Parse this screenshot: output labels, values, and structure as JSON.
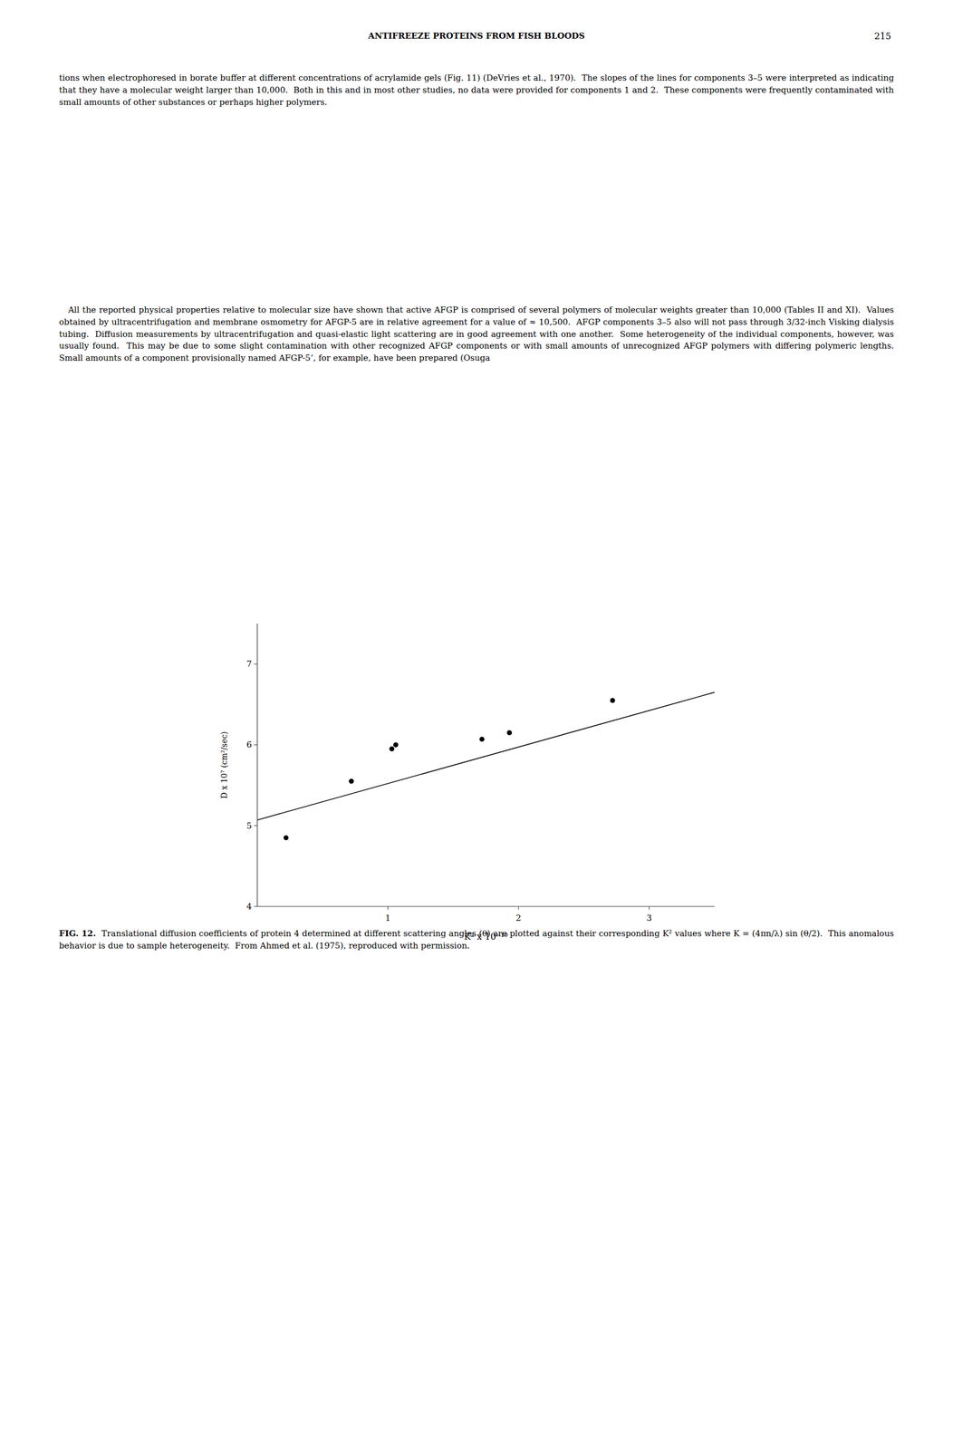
{
  "chart_data": {
    "type": "scatter",
    "xlabel": "K² x 10⁻¹⁰",
    "ylabel": "D x 10⁷ (cm²/sec)",
    "xlim": [
      0,
      3.5
    ],
    "ylim": [
      4.0,
      7.5
    ],
    "xticks": [
      1,
      2,
      3
    ],
    "yticks": [
      4,
      5,
      6,
      7
    ],
    "series": [
      {
        "type": "scatter",
        "color": "#000000",
        "marker": "circle",
        "x": [
          0.22,
          0.72,
          1.03,
          1.06,
          1.72,
          1.93,
          2.72
        ],
        "values": [
          4.85,
          5.55,
          5.95,
          6.0,
          6.07,
          6.15,
          6.55
        ]
      },
      {
        "type": "line",
        "color": "#000000",
        "line_style": "solid",
        "x": [
          0.0,
          3.5
        ],
        "values": [
          5.07,
          6.65
        ]
      }
    ]
  },
  "page": {
    "header": "ANTIFREEZE PROTEINS FROM FISH BLOODS",
    "page_number": "215",
    "paragraphs": [
      "tions when electrophoresed in borate buffer at different concentrations of acrylamide gels (Fig. 11) (DeVries et al., 1970).  The slopes of the lines for components 3–5 were interpreted as indicating that they have a molecular weight larger than 10,000.  Both in this and in most other studies, no data were provided for components 1 and 2.  These components were frequently contaminated with small amounts of other substances or perhaps higher polymers.",
      "   All the reported physical properties relative to molecular size have shown that active AFGP is comprised of several polymers of molecular weights greater than 10,000 (Tables II and XI).  Values obtained by ultracentrifugation and membrane osmometry for AFGP-5 are in relative agreement for a value of ≈ 10,500.  AFGP components 3–5 also will not pass through 3/32-inch Visking dialysis tubing.  Diffusion measurements by ultracentrifugation and quasi-elastic light scattering are in good agreement with one another.  Some heterogeneity of the individual components, however, was usually found.  This may be due to some slight contamination with other recognized AFGP components or with small amounts of unrecognized AFGP polymers with differing polymeric lengths.  Small amounts of a component provisionally named AFGP-5’, for example, have been prepared (Osuga"
    ],
    "caption_label": "FIG. 12.",
    "caption": "  Translational diffusion coefficients of protein 4 determined at different scattering angles (θ) are plotted against their corresponding K² values where K = (4πn/λ) sin (θ/2).  This anomalous behavior is due to sample heterogeneity.  From Ahmed et al. (1975), reproduced with permission."
  }
}
